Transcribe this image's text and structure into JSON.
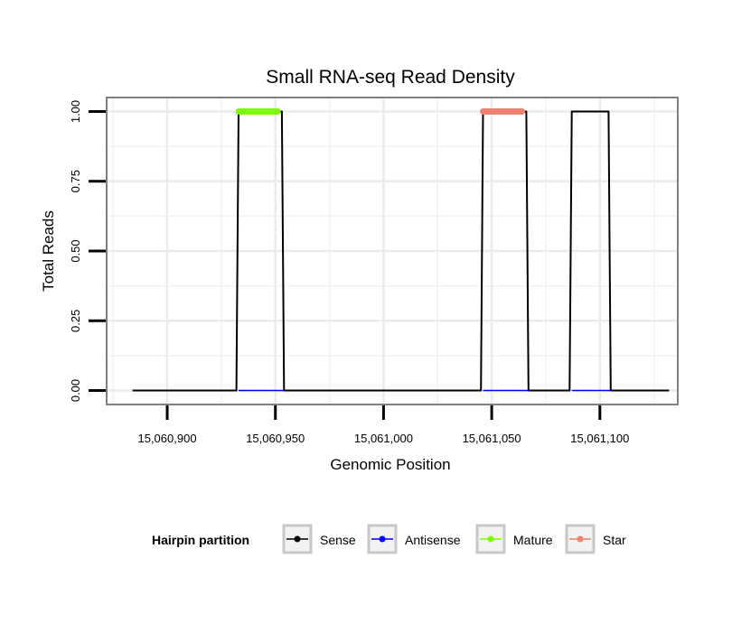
{
  "chart_data": {
    "type": "line",
    "title": "Small RNA-seq Read Density",
    "xlabel": "Genomic Position",
    "ylabel": "Total Reads",
    "xlim": [
      15060872,
      15061136
    ],
    "ylim": [
      -0.05,
      1.05
    ],
    "x_ticks": [
      15060900,
      15060950,
      15061000,
      15061050,
      15061100
    ],
    "x_tick_labels": [
      "15,060,900",
      "15,060,950",
      "15,061,000",
      "15,061,050",
      "15,061,100"
    ],
    "y_ticks": [
      0,
      0.25,
      0.5,
      0.75,
      1
    ],
    "y_tick_labels": [
      "0.00",
      "0.25",
      "0.50",
      "0.75",
      "1.00"
    ],
    "grid": true,
    "legend_position": "bottom",
    "legend_title": "Hairpin partition",
    "series": [
      {
        "name": "Sense",
        "color": "#000000",
        "x": [
          15060884,
          15060932,
          15060933,
          15060953,
          15060954,
          15061045,
          15061046,
          15061066,
          15061067,
          15061086,
          15061087,
          15061104,
          15061105,
          15061132
        ],
        "y": [
          0,
          0,
          1,
          1,
          0,
          0,
          1,
          1,
          0,
          0,
          1,
          1,
          0,
          0
        ]
      },
      {
        "name": "Antisense",
        "color": "#0000ff",
        "segments": [
          [
            15060933,
            15060954
          ],
          [
            15061046,
            15061067
          ],
          [
            15061087,
            15061105
          ]
        ],
        "value": 0
      },
      {
        "name": "Mature",
        "color": "#7cfc00",
        "x": [
          15060933,
          15060951
        ],
        "y": [
          1,
          1
        ]
      },
      {
        "name": "Star",
        "color": "#f08070",
        "x": [
          15061046,
          15061064
        ],
        "y": [
          1,
          1
        ]
      }
    ]
  }
}
